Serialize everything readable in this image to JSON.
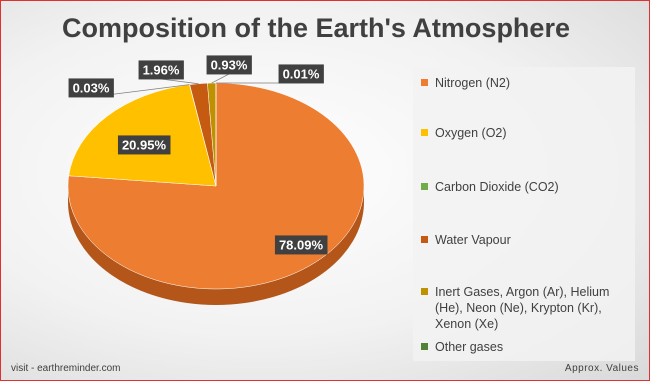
{
  "title": "Composition of the Earth's Atmosphere",
  "chart_data": {
    "type": "pie",
    "categories": [
      "Nitrogen (N2)",
      "Oxygen (O2)",
      "Carbon Dioxide (CO2)",
      "Water Vapour",
      "Inert Gases, Argon (Ar), Helium (He), Neon (Ne), Krypton (Kr), Xenon (Xe)",
      "Other gases"
    ],
    "values": [
      78.09,
      20.95,
      0.03,
      1.96,
      0.93,
      0.01
    ],
    "value_labels": [
      "78.09%",
      "20.95%",
      "0.03%",
      "1.96%",
      "0.93%",
      "0.01%"
    ],
    "colors": [
      "#ed7d31",
      "#ffc000",
      "#70ad47",
      "#c55a11",
      "#bf9000",
      "#548235"
    ],
    "legend": "right"
  },
  "footer": {
    "left": "visit - earthreminder.com",
    "right": "Approx. Values"
  }
}
